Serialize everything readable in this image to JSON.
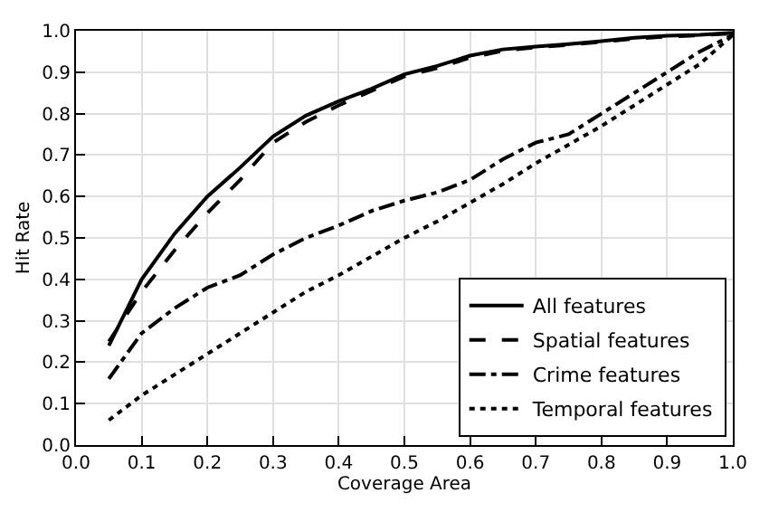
{
  "chart_data": {
    "type": "line",
    "xlabel": "Coverage Area",
    "ylabel": "Hit Rate",
    "x": [
      0.05,
      0.1,
      0.15,
      0.2,
      0.25,
      0.3,
      0.35,
      0.4,
      0.45,
      0.5,
      0.55,
      0.6,
      0.65,
      0.7,
      0.75,
      0.8,
      0.85,
      0.9,
      0.95,
      1.0
    ],
    "series": [
      {
        "name": "All features",
        "color": "#000000",
        "line_style": "solid",
        "values": [
          0.24,
          0.4,
          0.51,
          0.6,
          0.67,
          0.745,
          0.795,
          0.83,
          0.86,
          0.895,
          0.915,
          0.94,
          0.955,
          0.962,
          0.968,
          0.975,
          0.983,
          0.988,
          0.99,
          0.995
        ]
      },
      {
        "name": "Spatial features",
        "color": "#000000",
        "line_style": "dashed",
        "values": [
          0.25,
          0.37,
          0.47,
          0.56,
          0.64,
          0.73,
          0.78,
          0.82,
          0.855,
          0.89,
          0.91,
          0.935,
          0.952,
          0.96,
          0.966,
          0.973,
          0.981,
          0.986,
          0.989,
          0.994
        ]
      },
      {
        "name": "Crime features",
        "color": "#000000",
        "line_style": "dashdot",
        "values": [
          0.16,
          0.27,
          0.33,
          0.38,
          0.41,
          0.46,
          0.5,
          0.53,
          0.565,
          0.59,
          0.61,
          0.64,
          0.69,
          0.73,
          0.75,
          0.8,
          0.85,
          0.9,
          0.95,
          0.99
        ]
      },
      {
        "name": "Temporal features",
        "color": "#000000",
        "line_style": "dotted",
        "values": [
          0.06,
          0.12,
          0.17,
          0.22,
          0.27,
          0.32,
          0.37,
          0.41,
          0.455,
          0.5,
          0.54,
          0.585,
          0.63,
          0.68,
          0.725,
          0.77,
          0.82,
          0.87,
          0.92,
          0.99
        ]
      }
    ],
    "xlim": [
      0.0,
      1.0
    ],
    "xticks": [
      {
        "value": 0,
        "label": "0.0"
      },
      0.1,
      0.2,
      0.3,
      0.4,
      0.5,
      0.6,
      0.7,
      0.8,
      0.9,
      {
        "value": 1,
        "label": "1.0"
      }
    ],
    "ylim": [
      0.0,
      1.0
    ],
    "yticks": [
      {
        "value": 0,
        "label": "0.0"
      },
      0.1,
      0.2,
      0.3,
      0.4,
      0.5,
      0.6,
      0.7,
      0.8,
      0.9,
      {
        "value": 1,
        "label": "1.0"
      }
    ],
    "grid": true,
    "legend": "bottom right"
  }
}
